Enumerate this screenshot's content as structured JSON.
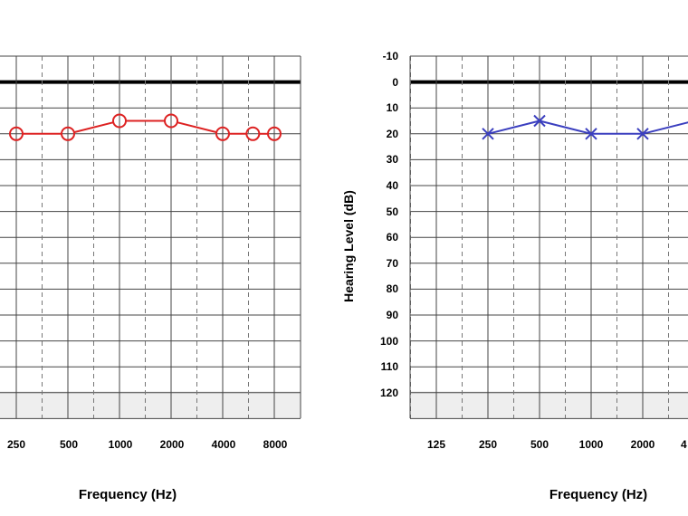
{
  "chart_data": [
    {
      "type": "line",
      "title": "",
      "xlabel": "Frequency (Hz)",
      "ylabel": "",
      "x_ticks": [
        "250",
        "500",
        "1000",
        "2000",
        "4000",
        "8000"
      ],
      "y_range": [
        -10,
        120
      ],
      "y_reversed": true,
      "grid": true,
      "x_scale": "log2",
      "series": [
        {
          "marker": "circle",
          "color": "#dd2222",
          "points": [
            [
              250,
              20
            ],
            [
              500,
              20
            ],
            [
              1000,
              15
            ],
            [
              2000,
              15
            ],
            [
              4000,
              20
            ],
            [
              6000,
              20
            ],
            [
              8000,
              20
            ]
          ]
        }
      ]
    },
    {
      "type": "line",
      "title": "",
      "xlabel": "Frequency (Hz)",
      "ylabel": "Hearing Level (dB)",
      "x_ticks": [
        "125",
        "250",
        "500",
        "1000",
        "2000",
        "4"
      ],
      "y_ticks": [
        "-10",
        "0",
        "10",
        "20",
        "30",
        "40",
        "50",
        "60",
        "70",
        "80",
        "90",
        "100",
        "110",
        "120"
      ],
      "y_range": [
        -10,
        120
      ],
      "y_reversed": true,
      "grid": true,
      "x_scale": "log2",
      "series": [
        {
          "marker": "x",
          "color": "#3b3fbf",
          "points": [
            [
              250,
              20
            ],
            [
              500,
              15
            ],
            [
              1000,
              20
            ],
            [
              2000,
              20
            ],
            [
              4000,
              15
            ]
          ]
        }
      ]
    }
  ]
}
